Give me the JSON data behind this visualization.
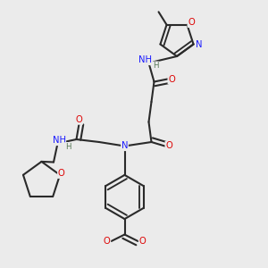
{
  "bg_color": "#ebebeb",
  "bond_color": "#2a2a2a",
  "bond_width": 1.5,
  "atom_colors": {
    "C": "#2a2a2a",
    "N": "#1a1aff",
    "O": "#dd0000",
    "H": "#557755"
  },
  "font_size": 7.2,
  "fig_size": [
    3.0,
    3.0
  ],
  "dpi": 100,
  "xlim": [
    0.0,
    1.0
  ],
  "ylim": [
    0.0,
    1.0
  ]
}
